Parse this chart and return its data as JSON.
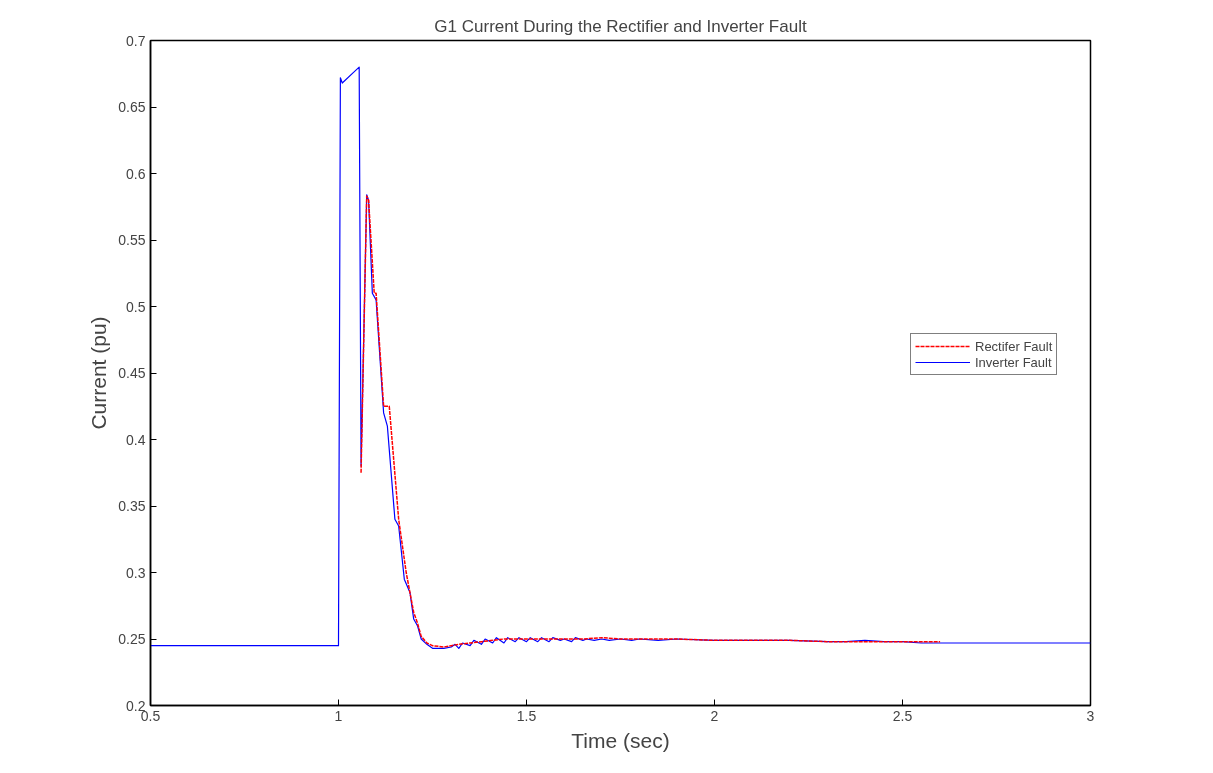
{
  "chart_data": {
    "type": "line",
    "title": "G1 Current During the Rectifier and Inverter Fault",
    "xlabel": "Time (sec)",
    "ylabel": "Current (pu)",
    "xlim": [
      0.5,
      3
    ],
    "ylim": [
      0.2,
      0.7
    ],
    "xticks": [
      0.5,
      1,
      1.5,
      2,
      2.5,
      3
    ],
    "yticks": [
      0.2,
      0.25,
      0.3,
      0.35,
      0.4,
      0.45,
      0.5,
      0.55,
      0.6,
      0.65,
      0.7
    ],
    "grid": false,
    "legend": "right",
    "marker": "none",
    "series": [
      {
        "name": "Rectifer Fault",
        "color": "#ff0000",
        "line_style": "dashed",
        "x": [
          1.06,
          1.075,
          1.08,
          1.095,
          1.1,
          1.12,
          1.135,
          1.16,
          1.18,
          1.2,
          1.21,
          1.22,
          1.235,
          1.25,
          1.28,
          1.3,
          1.32,
          1.35,
          1.38,
          1.41,
          1.44,
          1.47,
          1.5,
          1.55,
          1.6,
          1.65,
          1.7,
          1.75,
          1.8,
          1.9,
          2.0,
          2.1,
          2.2,
          2.3,
          2.4,
          2.5,
          2.6
        ],
        "values": [
          0.375,
          0.583,
          0.58,
          0.51,
          0.51,
          0.425,
          0.425,
          0.34,
          0.3,
          0.27,
          0.262,
          0.252,
          0.247,
          0.245,
          0.244,
          0.245,
          0.246,
          0.247,
          0.248,
          0.249,
          0.25,
          0.25,
          0.25,
          0.25,
          0.25,
          0.25,
          0.251,
          0.25,
          0.25,
          0.25,
          0.249,
          0.249,
          0.249,
          0.248,
          0.248,
          0.248,
          0.248
        ]
      },
      {
        "name": "Inverter Fault",
        "color": "#0000ff",
        "line_style": "solid",
        "x": [
          0.5,
          1.0,
          1.005,
          1.01,
          1.04,
          1.055,
          1.06,
          1.075,
          1.08,
          1.09,
          1.1,
          1.12,
          1.13,
          1.15,
          1.16,
          1.175,
          1.19,
          1.2,
          1.21,
          1.22,
          1.235,
          1.25,
          1.28,
          1.3,
          1.31,
          1.32,
          1.33,
          1.35,
          1.36,
          1.38,
          1.39,
          1.41,
          1.42,
          1.44,
          1.45,
          1.47,
          1.48,
          1.5,
          1.51,
          1.53,
          1.54,
          1.56,
          1.57,
          1.59,
          1.6,
          1.62,
          1.63,
          1.65,
          1.66,
          1.68,
          1.7,
          1.72,
          1.75,
          1.78,
          1.8,
          1.85,
          1.9,
          2.0,
          2.1,
          2.2,
          2.3,
          2.35,
          2.4,
          2.45,
          2.5,
          2.55,
          2.6,
          2.7,
          2.8,
          3.0
        ],
        "values": [
          0.245,
          0.245,
          0.672,
          0.668,
          0.676,
          0.68,
          0.38,
          0.584,
          0.58,
          0.51,
          0.505,
          0.42,
          0.41,
          0.34,
          0.335,
          0.295,
          0.285,
          0.265,
          0.26,
          0.25,
          0.246,
          0.243,
          0.243,
          0.244,
          0.246,
          0.243,
          0.247,
          0.245,
          0.249,
          0.246,
          0.25,
          0.247,
          0.251,
          0.247,
          0.251,
          0.248,
          0.251,
          0.248,
          0.251,
          0.248,
          0.251,
          0.248,
          0.251,
          0.249,
          0.25,
          0.248,
          0.251,
          0.249,
          0.25,
          0.249,
          0.25,
          0.249,
          0.25,
          0.249,
          0.25,
          0.249,
          0.25,
          0.249,
          0.249,
          0.249,
          0.248,
          0.248,
          0.249,
          0.248,
          0.248,
          0.247,
          0.247,
          0.247,
          0.247,
          0.247
        ]
      }
    ]
  }
}
